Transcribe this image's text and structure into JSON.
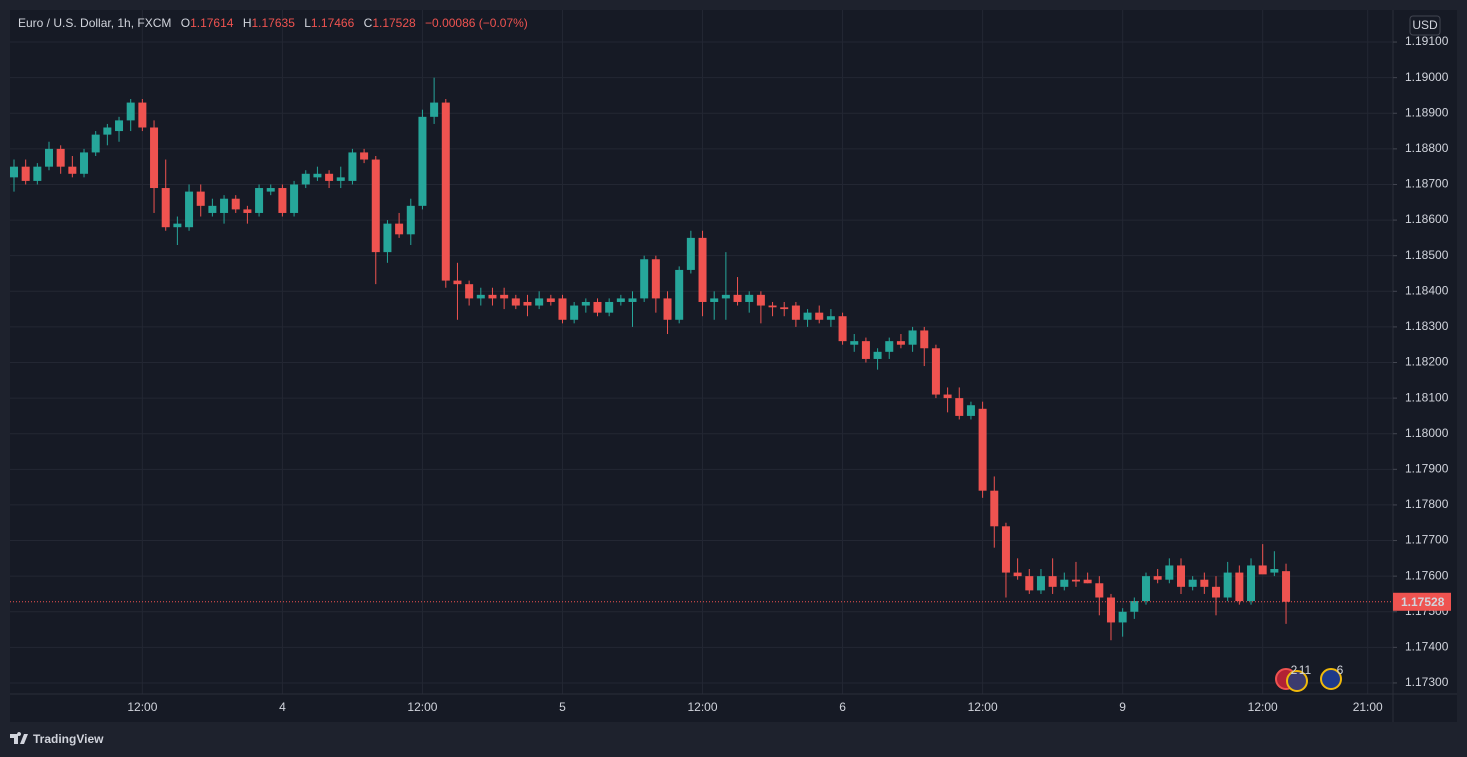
{
  "chart_data": {
    "type": "candlestick",
    "title": "Euro / U.S. Dollar, 1h, FXCM",
    "ohlc_labels": [
      "O",
      "H",
      "L",
      "C"
    ],
    "change": "−0.00086 (−0.07%)",
    "currency": "USD",
    "branding": "TradingView",
    "events": [
      "2",
      "11",
      "6"
    ],
    "up_color": "#26a69a",
    "down_color": "#ef5350",
    "grid": true,
    "categories": [
      null,
      null,
      null,
      null,
      null,
      null,
      null,
      null,
      null,
      null,
      null,
      "12:00",
      null,
      null,
      null,
      null,
      null,
      null,
      null,
      null,
      null,
      null,
      null,
      "4",
      null,
      null,
      null,
      null,
      null,
      null,
      null,
      null,
      null,
      null,
      null,
      "12:00",
      null,
      null,
      null,
      null,
      null,
      null,
      null,
      null,
      null,
      null,
      null,
      "5",
      null,
      null,
      null,
      null,
      null,
      null,
      null,
      null,
      null,
      null,
      null,
      "12:00",
      null,
      null,
      null,
      null,
      null,
      null,
      null,
      null,
      null,
      null,
      null,
      "6",
      null,
      null,
      null,
      null,
      null,
      null,
      null,
      null,
      null,
      null,
      null,
      "12:00",
      null,
      null,
      null,
      null,
      null,
      null,
      null,
      null,
      null,
      null,
      null,
      "9",
      null,
      null,
      null,
      null,
      null,
      null,
      null,
      null,
      null,
      null,
      null,
      "12:00",
      null,
      null,
      null,
      null,
      null,
      null,
      null,
      null,
      "21:00",
      null,
      null
    ],
    "open": [
      1.1872,
      1.1875,
      1.1871,
      1.1875,
      1.188,
      1.1875,
      1.1873,
      1.1879,
      1.1884,
      1.1885,
      1.1888,
      1.1893,
      1.1886,
      1.1869,
      1.1858,
      1.1858,
      1.1868,
      1.1862,
      1.1862,
      1.1866,
      1.1863,
      1.1862,
      1.1868,
      1.1869,
      1.1862,
      1.187,
      1.1872,
      1.1873,
      1.1871,
      1.1871,
      1.1879,
      1.1877,
      1.1851,
      1.1859,
      1.1856,
      1.1864,
      1.1889,
      1.1893,
      1.1843,
      1.1842,
      1.1838,
      1.1839,
      1.1839,
      1.1838,
      1.1837,
      1.1836,
      1.1838,
      1.1838,
      1.1832,
      1.1836,
      1.1837,
      1.1834,
      1.1837,
      1.1837,
      1.1838,
      1.1849,
      1.1838,
      1.1832,
      1.1846,
      1.1855,
      1.1837,
      1.1838,
      1.1839,
      1.1837,
      1.1839,
      1.1836,
      1.18355,
      1.1836,
      1.1832,
      1.1834,
      1.1832,
      1.1833,
      1.1825,
      1.1826,
      1.1821,
      1.1823,
      1.1826,
      1.1825,
      1.1829,
      1.1824,
      1.1811,
      1.181,
      1.1805,
      1.1807,
      1.1784,
      1.1774,
      1.1761,
      1.176,
      1.1756,
      1.176,
      1.1757,
      1.1759,
      1.1759,
      1.1758,
      1.1754,
      1.1747,
      1.175,
      1.1753,
      1.176,
      1.1759,
      1.1763,
      1.1757,
      1.1759,
      1.1757,
      1.1754,
      1.1761,
      1.1753,
      1.1763,
      1.1761,
      1.17614,
      null,
      null,
      null,
      null,
      null,
      null,
      null,
      null,
      null
    ],
    "high": [
      1.1877,
      1.1877,
      1.1876,
      1.1882,
      1.1881,
      1.1878,
      1.188,
      1.1885,
      1.1887,
      1.1889,
      1.1894,
      1.1894,
      1.1888,
      1.1877,
      1.1861,
      1.187,
      1.187,
      1.1866,
      1.1867,
      1.1867,
      1.1864,
      1.187,
      1.187,
      1.187,
      1.1871,
      1.1874,
      1.1875,
      1.1874,
      1.1875,
      1.188,
      1.188,
      1.1878,
      1.186,
      1.1862,
      1.1866,
      1.1891,
      1.19,
      1.1894,
      1.1848,
      1.1843,
      1.1841,
      1.1841,
      1.1841,
      1.1839,
      1.1839,
      1.184,
      1.1839,
      1.1839,
      1.1837,
      1.1838,
      1.1838,
      1.1838,
      1.1839,
      1.184,
      1.185,
      1.185,
      1.184,
      1.1847,
      1.1857,
      1.1857,
      1.184,
      1.1851,
      1.1844,
      1.184,
      1.184,
      1.1837,
      1.1837,
      1.1837,
      1.1835,
      1.1836,
      1.1835,
      1.1834,
      1.1828,
      1.1827,
      1.1824,
      1.1827,
      1.1828,
      1.183,
      1.183,
      1.1825,
      1.1813,
      1.1813,
      1.1809,
      1.1809,
      1.1788,
      1.1775,
      1.1765,
      1.1762,
      1.1762,
      1.1765,
      1.1761,
      1.1764,
      1.1761,
      1.176,
      1.1755,
      1.1751,
      1.1754,
      1.1761,
      1.1762,
      1.1765,
      1.1765,
      1.176,
      1.1761,
      1.176,
      1.1764,
      1.1763,
      1.1765,
      1.1769,
      1.1767,
      1.17635,
      null,
      null,
      null,
      null,
      null,
      null,
      null,
      null,
      null
    ],
    "low": [
      1.1868,
      1.187,
      1.187,
      1.1874,
      1.1873,
      1.1872,
      1.1872,
      1.1878,
      1.1881,
      1.1882,
      1.1885,
      1.1885,
      1.1862,
      1.1857,
      1.1853,
      1.1857,
      1.1861,
      1.1861,
      1.1859,
      1.1862,
      1.1859,
      1.1861,
      1.1867,
      1.1861,
      1.1861,
      1.1869,
      1.1871,
      1.1869,
      1.1869,
      1.187,
      1.1876,
      1.1842,
      1.1848,
      1.1855,
      1.1853,
      1.1863,
      1.1887,
      1.1841,
      1.1832,
      1.1836,
      1.1836,
      1.1836,
      1.1835,
      1.1835,
      1.1833,
      1.1835,
      1.1836,
      1.1831,
      1.1831,
      1.1834,
      1.1833,
      1.1833,
      1.1836,
      1.183,
      1.1837,
      1.1834,
      1.1828,
      1.1831,
      1.1845,
      1.1833,
      1.1832,
      1.1832,
      1.1836,
      1.1834,
      1.1831,
      1.1833,
      1.1833,
      1.183,
      1.183,
      1.1831,
      1.183,
      1.1825,
      1.1823,
      1.182,
      1.1818,
      1.1821,
      1.1824,
      1.1823,
      1.1819,
      1.181,
      1.1806,
      1.1804,
      1.1804,
      1.1782,
      1.1768,
      1.1754,
      1.1759,
      1.1755,
      1.1755,
      1.1755,
      1.1756,
      1.1757,
      1.1758,
      1.1749,
      1.1742,
      1.1743,
      1.1748,
      1.1752,
      1.1758,
      1.1758,
      1.1755,
      1.1756,
      1.1755,
      1.1749,
      1.1753,
      1.1752,
      1.1752,
      1.1761,
      1.176,
      1.17466,
      null,
      null,
      null,
      null,
      null,
      null,
      null,
      null,
      null
    ],
    "close": [
      1.1875,
      1.1871,
      1.1875,
      1.188,
      1.1875,
      1.1873,
      1.1879,
      1.1884,
      1.1886,
      1.1888,
      1.1893,
      1.1886,
      1.1869,
      1.1858,
      1.1859,
      1.1868,
      1.1864,
      1.1864,
      1.1866,
      1.1863,
      1.1862,
      1.1869,
      1.1869,
      1.1862,
      1.187,
      1.1873,
      1.1873,
      1.1871,
      1.1872,
      1.1879,
      1.1877,
      1.1851,
      1.1859,
      1.1856,
      1.1864,
      1.1889,
      1.1893,
      1.1843,
      1.1842,
      1.1838,
      1.1839,
      1.1838,
      1.1838,
      1.1836,
      1.1836,
      1.1838,
      1.1837,
      1.1832,
      1.1836,
      1.1837,
      1.1834,
      1.1837,
      1.1838,
      1.1838,
      1.1849,
      1.1838,
      1.1832,
      1.1846,
      1.1855,
      1.1837,
      1.1838,
      1.1839,
      1.1837,
      1.1839,
      1.1836,
      1.18355,
      1.1835,
      1.1832,
      1.1834,
      1.1832,
      1.1833,
      1.1826,
      1.1826,
      1.1821,
      1.1823,
      1.1826,
      1.1825,
      1.1829,
      1.1824,
      1.1811,
      1.181,
      1.1805,
      1.1808,
      1.1784,
      1.1774,
      1.1761,
      1.176,
      1.1756,
      1.176,
      1.1757,
      1.1759,
      1.17585,
      1.1758,
      1.1754,
      1.1747,
      1.175,
      1.1753,
      1.176,
      1.1759,
      1.1763,
      1.1757,
      1.1759,
      1.1757,
      1.1754,
      1.1761,
      1.1753,
      1.1763,
      1.17605,
      1.1762,
      1.17528,
      null,
      null,
      null,
      null,
      null,
      null,
      null,
      null,
      null
    ],
    "ylim": [
      1.17269,
      1.1919
    ],
    "yticks": [
      {
        "value": 1.173,
        "label": "1.17300"
      },
      {
        "value": 1.174,
        "label": "1.17400"
      },
      {
        "value": 1.175,
        "label": "1.17500"
      },
      {
        "value": 1.176,
        "label": "1.17600"
      },
      {
        "value": 1.177,
        "label": "1.17700"
      },
      {
        "value": 1.178,
        "label": "1.17800"
      },
      {
        "value": 1.179,
        "label": "1.17900"
      },
      {
        "value": 1.18,
        "label": "1.18000"
      },
      {
        "value": 1.181,
        "label": "1.18100"
      },
      {
        "value": 1.182,
        "label": "1.18200"
      },
      {
        "value": 1.183,
        "label": "1.18300"
      },
      {
        "value": 1.184,
        "label": "1.18400"
      },
      {
        "value": 1.185,
        "label": "1.18500"
      },
      {
        "value": 1.186,
        "label": "1.18600"
      },
      {
        "value": 1.187,
        "label": "1.18700"
      },
      {
        "value": 1.188,
        "label": "1.18800"
      },
      {
        "value": 1.189,
        "label": "1.18900"
      },
      {
        "value": 1.19,
        "label": "1.19000"
      },
      {
        "value": 1.191,
        "label": "1.19100"
      }
    ]
  }
}
